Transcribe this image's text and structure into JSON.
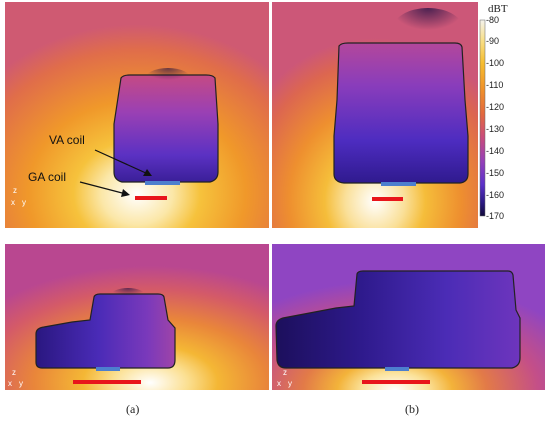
{
  "colorbar": {
    "unit": "dBT",
    "ticks": [
      "-80",
      "-90",
      "-100",
      "-110",
      "-120",
      "-130",
      "-140",
      "-150",
      "-160",
      "-170"
    ],
    "colors": [
      "#f2eee8",
      "#f7c748",
      "#f29a1f",
      "#e56a3a",
      "#c9487a",
      "#8f3fbf",
      "#5a30c8",
      "#2b1a83",
      "#120a3a"
    ]
  },
  "annotations": {
    "va_coil": "VA coil",
    "ga_coil": "GA coil"
  },
  "axes_indicator": {
    "z": "z",
    "xy": "x",
    "y": "y"
  },
  "captions": {
    "a": "(a)",
    "b": "(b)"
  },
  "colors": {
    "ga_coil": "#e8151b",
    "va_coil": "#4d7fce"
  }
}
